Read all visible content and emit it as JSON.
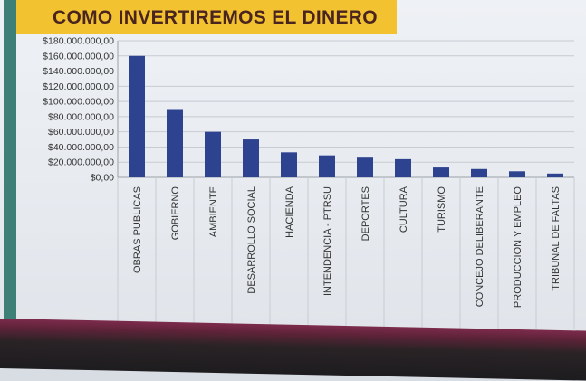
{
  "slide": {
    "title": "COMO INVERTIREMOS EL DINERO"
  },
  "colors": {
    "bar": "#2e4390",
    "title_bg": "#f2c230",
    "title_text": "#4a2520",
    "accent_strip": "#3e7f78",
    "grid": "#c7ccd3"
  },
  "chart_data": {
    "type": "bar",
    "title": "",
    "xlabel": "",
    "ylabel": "",
    "ylim": [
      0,
      180000000
    ],
    "grid": true,
    "legend": "none",
    "y_ticks": [
      0,
      20000000,
      40000000,
      60000000,
      80000000,
      100000000,
      120000000,
      140000000,
      160000000,
      180000000
    ],
    "y_tick_labels": [
      "$0,00",
      "$20.000.000,00",
      "$40.000.000,00",
      "$60.000.000,00",
      "$80.000.000,00",
      "$100.000.000,00",
      "$120.000.000,00",
      "$140.000.000,00",
      "$160.000.000,00",
      "$180.000.000,00"
    ],
    "categories": [
      "OBRAS PUBLICAS",
      "GOBIERNO",
      "AMBIENTE",
      "DESARROLLO SOCIAL",
      "HACIENDA",
      "INTENDENCIA - PTRSU",
      "DEPORTES",
      "CULTURA",
      "TURISMO",
      "CONCEJO DELIBERANTE",
      "PRODUCCION Y EMPLEO",
      "TRIBUNAL DE FALTAS"
    ],
    "values": [
      160000000,
      90000000,
      60000000,
      50000000,
      33000000,
      29000000,
      26000000,
      24000000,
      13000000,
      11000000,
      8000000,
      5000000
    ]
  }
}
